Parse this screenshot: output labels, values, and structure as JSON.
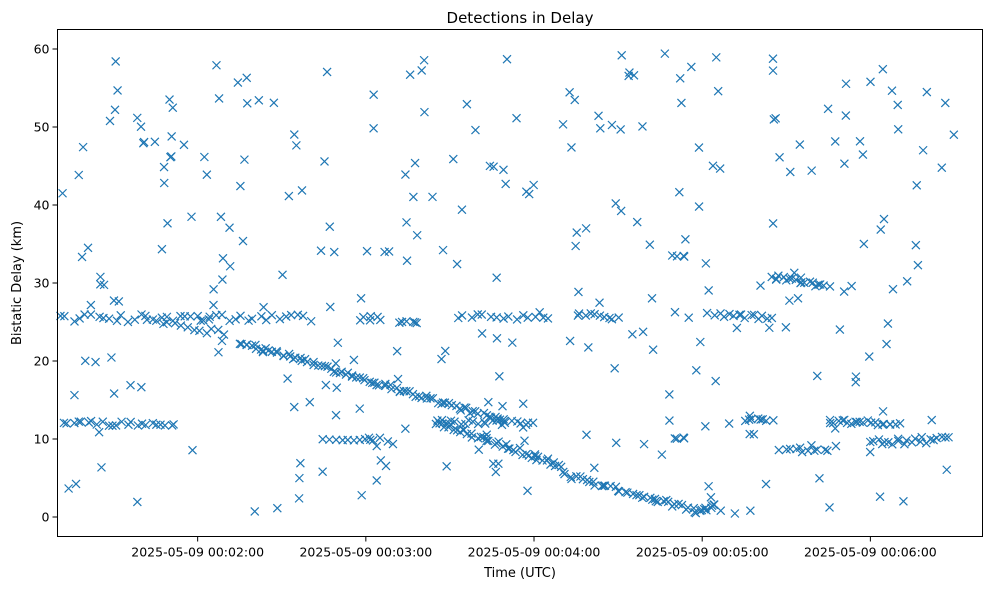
{
  "chart_data": {
    "type": "scatter",
    "title": "Detections in Delay",
    "xlabel": "Time (UTC)",
    "ylabel": "Bistatic Delay (km)",
    "x_tick_labels": [
      "2025-05-09 00:02:00",
      "2025-05-09 00:03:00",
      "2025-05-09 00:04:00",
      "2025-05-09 00:05:00",
      "2025-05-09 00:06:00"
    ],
    "x_ticks": [
      "00:02:00",
      "00:03:00",
      "00:04:00",
      "00:05:00",
      "00:06:00"
    ],
    "y_ticks": [
      0,
      10,
      20,
      30,
      40,
      50,
      60
    ],
    "xlim": [
      "00:01:10",
      "00:06:40"
    ],
    "ylim": [
      -2.5,
      62.5
    ],
    "grid": false,
    "marker": "x",
    "marker_color": "#1f77b4",
    "series_groups": [
      {
        "kind": "track",
        "from": [
          "00:01:02",
          25.5
        ],
        "to": [
          "00:02:40",
          25.5
        ],
        "count": 45,
        "jitter": 0.5
      },
      {
        "kind": "track",
        "from": [
          "00:01:05",
          12.2
        ],
        "to": [
          "00:01:52",
          11.8
        ],
        "count": 28,
        "jitter": 0.3
      },
      {
        "kind": "track",
        "from": [
          "00:01:45",
          25.2
        ],
        "to": [
          "00:02:10",
          23.5
        ],
        "count": 12,
        "jitter": 0.4
      },
      {
        "kind": "track",
        "from": [
          "00:02:15",
          22.5
        ],
        "to": [
          "00:03:50",
          12.2
        ],
        "count": 90,
        "jitter": 0.3
      },
      {
        "kind": "track",
        "from": [
          "00:03:25",
          12.3
        ],
        "to": [
          "00:04:10",
          6.5
        ],
        "count": 45,
        "jitter": 0.4
      },
      {
        "kind": "track",
        "from": [
          "00:04:10",
          5.5
        ],
        "to": [
          "00:04:58",
          0.8
        ],
        "count": 40,
        "jitter": 0.3
      },
      {
        "kind": "track",
        "from": [
          "00:04:58",
          0.5
        ],
        "to": [
          "00:05:05",
          1.5
        ],
        "count": 10,
        "jitter": 0.3
      },
      {
        "kind": "track",
        "from": [
          "00:03:25",
          12.2
        ],
        "to": [
          "00:04:00",
          12.0
        ],
        "count": 22,
        "jitter": 0.3
      },
      {
        "kind": "track",
        "from": [
          "00:03:35",
          25.8
        ],
        "to": [
          "00:04:05",
          25.5
        ],
        "count": 14,
        "jitter": 0.3
      },
      {
        "kind": "track",
        "from": [
          "00:04:15",
          26.0
        ],
        "to": [
          "00:04:30",
          25.5
        ],
        "count": 10,
        "jitter": 0.3
      },
      {
        "kind": "track",
        "from": [
          "00:05:05",
          26.0
        ],
        "to": [
          "00:05:25",
          25.5
        ],
        "count": 14,
        "jitter": 0.3
      },
      {
        "kind": "track",
        "from": [
          "00:05:25",
          30.8
        ],
        "to": [
          "00:05:45",
          29.5
        ],
        "count": 18,
        "jitter": 0.3
      },
      {
        "kind": "track",
        "from": [
          "00:05:45",
          12.2
        ],
        "to": [
          "00:06:10",
          12.0
        ],
        "count": 22,
        "jitter": 0.3
      },
      {
        "kind": "track",
        "from": [
          "00:06:00",
          9.5
        ],
        "to": [
          "00:06:28",
          10.0
        ],
        "count": 22,
        "jitter": 0.4
      },
      {
        "kind": "track",
        "from": [
          "00:05:28",
          8.5
        ],
        "to": [
          "00:05:45",
          8.3
        ],
        "count": 10,
        "jitter": 0.3
      },
      {
        "kind": "track",
        "from": [
          "00:05:15",
          12.5
        ],
        "to": [
          "00:05:25",
          12.4
        ],
        "count": 8,
        "jitter": 0.2
      },
      {
        "kind": "track",
        "from": [
          "00:02:45",
          10.0
        ],
        "to": [
          "00:03:05",
          10.0
        ],
        "count": 10,
        "jitter": 0.2
      },
      {
        "kind": "track",
        "from": [
          "00:02:58",
          25.5
        ],
        "to": [
          "00:03:05",
          25.5
        ],
        "count": 6,
        "jitter": 0.3
      },
      {
        "kind": "track",
        "from": [
          "00:03:12",
          25.2
        ],
        "to": [
          "00:03:18",
          25.0
        ],
        "count": 5,
        "jitter": 0.3
      },
      {
        "kind": "track",
        "from": [
          "00:04:50",
          33.5
        ],
        "to": [
          "00:04:54",
          33.2
        ],
        "count": 4,
        "jitter": 0.2
      },
      {
        "kind": "track",
        "from": [
          "00:04:50",
          10.0
        ],
        "to": [
          "00:04:54",
          10.0
        ],
        "count": 4,
        "jitter": 0.2
      },
      {
        "kind": "clutter",
        "x_range": [
          "00:01:05",
          "00:06:30"
        ],
        "y_range": [
          0,
          60
        ],
        "count": 300,
        "seed": 7
      }
    ]
  }
}
